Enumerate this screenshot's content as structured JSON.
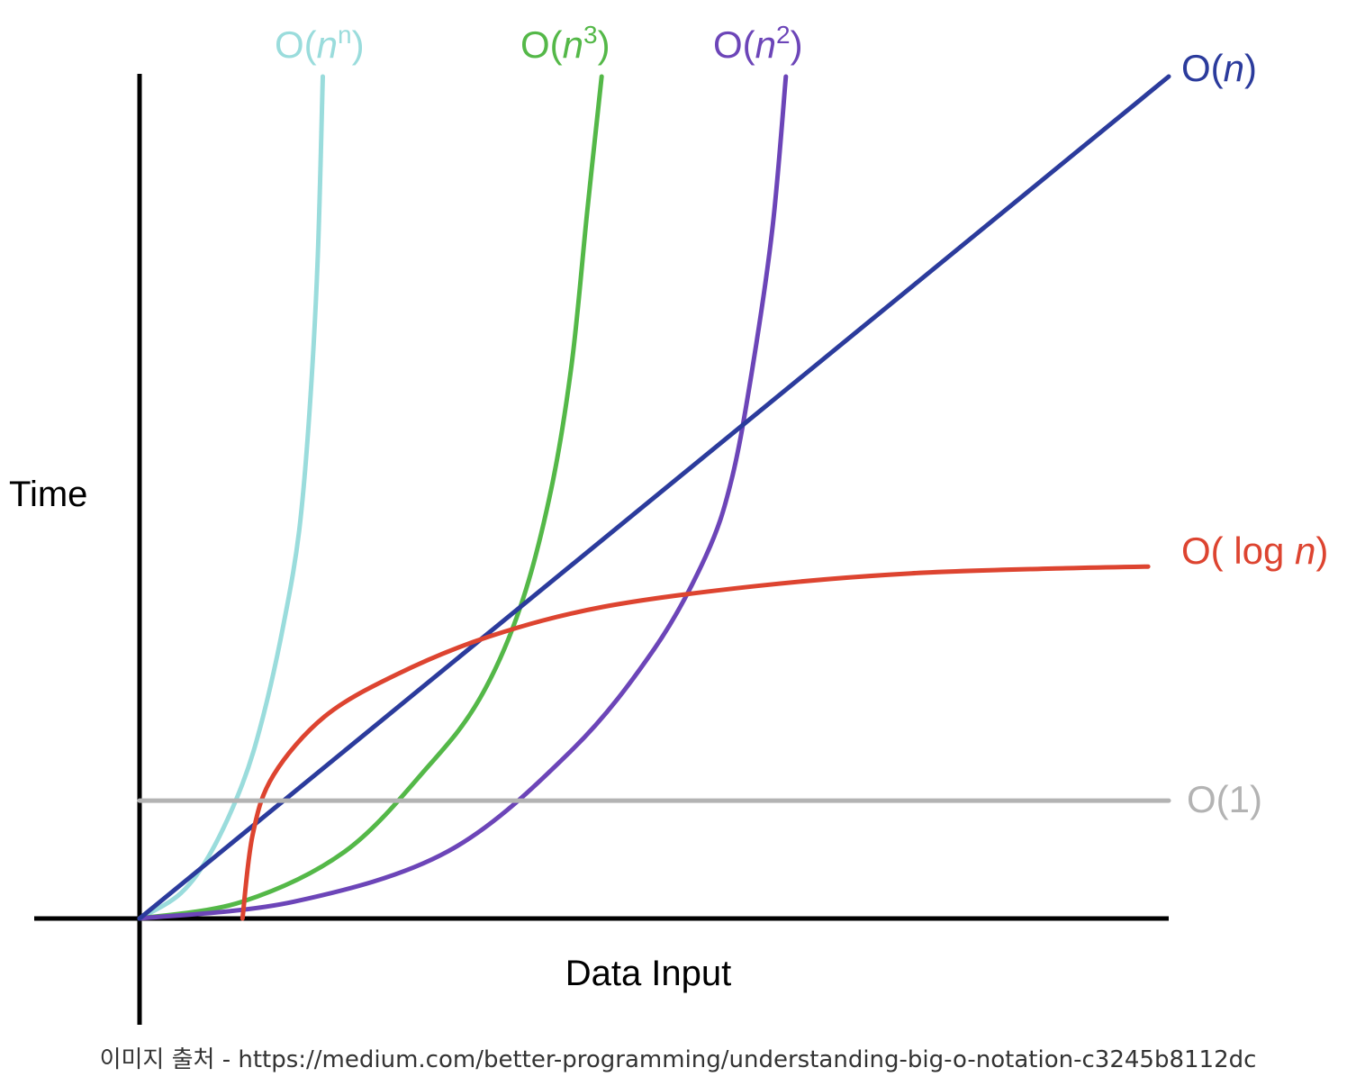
{
  "chart_data": {
    "type": "line",
    "title": "",
    "xlabel": "Data Input",
    "ylabel": "Time",
    "xlim": [
      0,
      100
    ],
    "ylim": [
      0,
      100
    ],
    "grid": false,
    "legend": "inline-at-curve-ends",
    "series": [
      {
        "name_parts": [
          "O(",
          "n",
          "n",
          ")"
        ],
        "name_style": [
          "normal",
          "italic",
          "superscript",
          "normal"
        ],
        "color": "#9adcdc",
        "x": [
          0,
          4,
          7,
          10,
          12,
          14,
          15.5,
          16.5,
          17.3,
          17.8
        ],
        "y": [
          0,
          3,
          8,
          16,
          24,
          35,
          46,
          60,
          78,
          100
        ]
      },
      {
        "name_parts": [
          "O(",
          "n",
          "3",
          ")"
        ],
        "name_style": [
          "normal",
          "italic",
          "superscript",
          "normal"
        ],
        "color": "#54b848",
        "x": [
          0,
          10,
          20,
          28,
          33,
          37,
          40,
          42,
          43.5,
          44.9
        ],
        "y": [
          0,
          2,
          8,
          18,
          26,
          37,
          51,
          66,
          84,
          100
        ]
      },
      {
        "name_parts": [
          "O(",
          "n",
          "2",
          ")"
        ],
        "name_style": [
          "normal",
          "italic",
          "superscript",
          "normal"
        ],
        "color": "#6c45b8",
        "x": [
          0,
          15,
          30,
          42,
          50,
          55,
          57.5,
          59.5,
          61.5,
          62.8
        ],
        "y": [
          0,
          2,
          8,
          20,
          32,
          43,
          52,
          65,
          82,
          100
        ]
      },
      {
        "name_parts": [
          "O(",
          "n",
          ")"
        ],
        "name_style": [
          "normal",
          "italic",
          "normal"
        ],
        "color": "#2b3b9c",
        "x": [
          0,
          100
        ],
        "y": [
          0,
          100
        ]
      },
      {
        "name_parts": [
          "O( log ",
          "n",
          ")"
        ],
        "name_style": [
          "normal",
          "italic",
          "normal"
        ],
        "color": "#dd4430",
        "x": [
          10,
          11,
          13,
          18,
          25,
          34,
          45,
          60,
          75,
          90,
          98
        ],
        "y": [
          0,
          10,
          17,
          24,
          29,
          33.5,
          37,
          39.5,
          41,
          41.6,
          41.8
        ]
      },
      {
        "name_parts": [
          "O(1)"
        ],
        "name_style": [
          "normal"
        ],
        "color": "#b3b3b3",
        "x": [
          0,
          100
        ],
        "y": [
          14,
          14
        ]
      }
    ]
  },
  "caption": "이미지 출처 - https://medium.com/better-programming/understanding-big-o-notation-c3245b8112dc"
}
